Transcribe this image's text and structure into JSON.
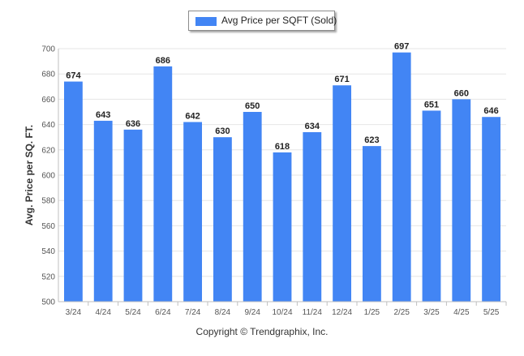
{
  "legend": {
    "label": "Avg Price per SQFT (Sold)"
  },
  "footer": {
    "copyright": "Copyright © Trendgraphix, Inc."
  },
  "colors": {
    "bar": "#4285f4",
    "grid": "#e6e6e6",
    "axis": "#bfbfbf",
    "tick_text": "#555555",
    "value_text": "#222222"
  },
  "chart_data": {
    "type": "bar",
    "title": "",
    "xlabel": "",
    "ylabel": "Avg. Price per SQ. FT.",
    "categories": [
      "3/24",
      "4/24",
      "5/24",
      "6/24",
      "7/24",
      "8/24",
      "9/24",
      "10/24",
      "11/24",
      "12/24",
      "1/25",
      "2/25",
      "3/25",
      "4/25",
      "5/25"
    ],
    "series": [
      {
        "name": "Avg Price per SQFT (Sold)",
        "values": [
          674,
          643,
          636,
          686,
          642,
          630,
          650,
          618,
          634,
          671,
          623,
          697,
          651,
          660,
          646
        ]
      }
    ],
    "ylim": [
      500,
      700
    ],
    "yticks": [
      500,
      520,
      540,
      560,
      580,
      600,
      620,
      640,
      660,
      680,
      700
    ],
    "grid": true,
    "legend_position": "top-center",
    "data_labels": true
  }
}
